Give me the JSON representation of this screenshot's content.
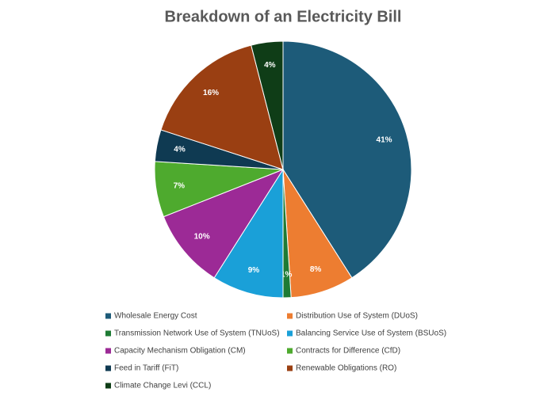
{
  "chart_data": {
    "type": "pie",
    "title": "Breakdown of an Electricity Bill",
    "categories": [
      "Wholesale Energy Cost",
      "Distribution Use of System (DUoS)",
      "Transmission Network Use of System (TNUoS)",
      "Balancing Service Use of System (BSUoS)",
      "Capacity Mechanism Obligation (CM)",
      "Contracts for Difference (CfD)",
      "Feed in Tariff (FiT)",
      "Renewable Obligations (RO)",
      "Climate Change Levi (CCL)"
    ],
    "values": [
      41,
      8,
      1,
      9,
      10,
      7,
      4,
      16,
      4
    ],
    "value_labels": [
      "41%",
      "8%",
      "1%",
      "9%",
      "10%",
      "7%",
      "4%",
      "16%",
      "4%"
    ],
    "colors": [
      "#1d5b79",
      "#ed7d31",
      "#1e7b34",
      "#1aa0d8",
      "#9c2a96",
      "#4eaa2e",
      "#0f3a52",
      "#9a3f12",
      "#0f3d17"
    ],
    "legend": "bottom"
  }
}
